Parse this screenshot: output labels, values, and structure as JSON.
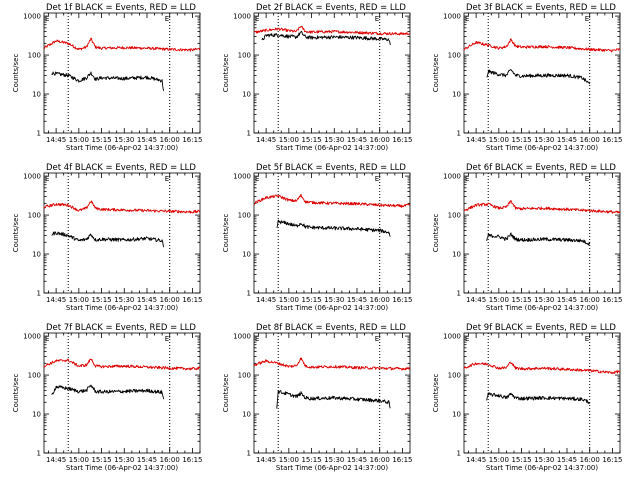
{
  "figure": {
    "layout": "3x3",
    "xlabel": "Start Time (06-Apr-02 14:37:00)",
    "ylabel": "Counts/sec",
    "x_tick_labels": [
      "14:45",
      "15:00",
      "15:15",
      "15:30",
      "15:45",
      "16:00",
      "16:15"
    ],
    "y_tick_labels": [
      "1",
      "10",
      "100",
      "1000"
    ],
    "marker_letter": "E",
    "colors": {
      "events": "#000000",
      "lld": "#dd0000"
    }
  },
  "chart_data": [
    {
      "type": "line",
      "title": "Det 1f BLACK = Events, RED = LLD",
      "xlim": [
        "14:37",
        "16:20"
      ],
      "ylim": [
        1,
        1200
      ],
      "yscale": "log",
      "vlines": [
        "14:53",
        "16:00"
      ],
      "marker_letter": "E",
      "series": [
        {
          "color": "#dd0000",
          "x": [
            "14:37",
            "14:45",
            "14:53",
            "15:00",
            "15:05",
            "15:08",
            "15:11",
            "15:15",
            "15:30",
            "15:45",
            "16:00",
            "16:15",
            "16:20"
          ],
          "values": [
            150,
            230,
            200,
            140,
            160,
            260,
            160,
            150,
            155,
            150,
            140,
            135,
            145
          ]
        },
        {
          "color": "#000000",
          "x": [
            "14:42",
            "14:45",
            "14:53",
            "15:00",
            "15:05",
            "15:08",
            "15:11",
            "15:15",
            "15:30",
            "15:45",
            "15:55",
            "15:56"
          ],
          "values": [
            35,
            33,
            30,
            22,
            26,
            35,
            24,
            26,
            25,
            27,
            22,
            12
          ]
        }
      ]
    },
    {
      "type": "line",
      "title": "Det 2f BLACK = Events, RED = LLD",
      "xlim": [
        "14:37",
        "16:20"
      ],
      "ylim": [
        1,
        1200
      ],
      "yscale": "log",
      "vlines": [
        "14:53",
        "16:00"
      ],
      "marker_letter": "E",
      "series": [
        {
          "color": "#dd0000",
          "x": [
            "14:37",
            "14:45",
            "14:53",
            "15:00",
            "15:05",
            "15:08",
            "15:11",
            "15:15",
            "15:30",
            "15:45",
            "16:00",
            "16:15",
            "16:20"
          ],
          "values": [
            380,
            430,
            470,
            420,
            400,
            550,
            400,
            390,
            400,
            380,
            360,
            350,
            360
          ]
        },
        {
          "color": "#000000",
          "x": [
            "14:42",
            "14:45",
            "14:53",
            "15:00",
            "15:05",
            "15:08",
            "15:11",
            "15:15",
            "15:30",
            "15:45",
            "16:00",
            "16:06",
            "16:07"
          ],
          "values": [
            230,
            320,
            330,
            300,
            290,
            380,
            290,
            280,
            290,
            280,
            260,
            250,
            180
          ]
        }
      ]
    },
    {
      "type": "line",
      "title": "Det 3f BLACK = Events, RED = LLD",
      "xlim": [
        "14:37",
        "16:20"
      ],
      "ylim": [
        1,
        1200
      ],
      "yscale": "log",
      "vlines": [
        "14:53",
        "16:00"
      ],
      "marker_letter": "E",
      "series": [
        {
          "color": "#dd0000",
          "x": [
            "14:37",
            "14:45",
            "14:53",
            "15:00",
            "15:05",
            "15:08",
            "15:11",
            "15:15",
            "15:30",
            "15:45",
            "16:00",
            "16:15",
            "16:20"
          ],
          "values": [
            140,
            210,
            180,
            150,
            165,
            250,
            170,
            160,
            165,
            155,
            140,
            130,
            140
          ]
        },
        {
          "color": "#000000",
          "x": [
            "14:52",
            "14:53",
            "15:00",
            "15:05",
            "15:08",
            "15:11",
            "15:15",
            "15:30",
            "15:45",
            "15:55",
            "16:00"
          ],
          "values": [
            25,
            38,
            32,
            30,
            42,
            30,
            29,
            30,
            30,
            26,
            18
          ]
        }
      ]
    },
    {
      "type": "line",
      "title": "Det 4f BLACK = Events, RED = LLD",
      "xlim": [
        "14:37",
        "16:20"
      ],
      "ylim": [
        1,
        1200
      ],
      "yscale": "log",
      "vlines": [
        "14:53",
        "16:00"
      ],
      "marker_letter": "E",
      "series": [
        {
          "color": "#dd0000",
          "x": [
            "14:37",
            "14:45",
            "14:53",
            "15:00",
            "15:05",
            "15:08",
            "15:11",
            "15:15",
            "15:30",
            "15:45",
            "16:00",
            "16:15",
            "16:20"
          ],
          "values": [
            160,
            190,
            180,
            130,
            150,
            230,
            150,
            140,
            135,
            130,
            125,
            120,
            125
          ]
        },
        {
          "color": "#000000",
          "x": [
            "14:42",
            "14:45",
            "14:53",
            "15:00",
            "15:05",
            "15:08",
            "15:11",
            "15:15",
            "15:30",
            "15:45",
            "15:55",
            "15:56"
          ],
          "values": [
            32,
            35,
            30,
            22,
            24,
            32,
            23,
            24,
            23,
            25,
            22,
            15
          ]
        }
      ]
    },
    {
      "type": "line",
      "title": "Det 5f BLACK = Events, RED = LLD",
      "xlim": [
        "14:37",
        "16:20"
      ],
      "ylim": [
        1,
        1200
      ],
      "yscale": "log",
      "vlines": [
        "14:53",
        "16:00"
      ],
      "marker_letter": "E",
      "series": [
        {
          "color": "#dd0000",
          "x": [
            "14:37",
            "14:45",
            "14:53",
            "15:00",
            "15:05",
            "15:08",
            "15:11",
            "15:15",
            "15:30",
            "15:45",
            "16:00",
            "16:15",
            "16:20"
          ],
          "values": [
            200,
            280,
            310,
            240,
            230,
            320,
            220,
            210,
            200,
            195,
            180,
            170,
            180
          ]
        },
        {
          "color": "#000000",
          "x": [
            "14:52",
            "14:53",
            "15:00",
            "15:05",
            "15:08",
            "15:11",
            "15:15",
            "15:30",
            "15:45",
            "16:00",
            "16:06",
            "16:07"
          ],
          "values": [
            45,
            68,
            60,
            52,
            62,
            50,
            48,
            46,
            44,
            40,
            36,
            28
          ]
        }
      ]
    },
    {
      "type": "line",
      "title": "Det 6f BLACK = Events, RED = LLD",
      "xlim": [
        "14:37",
        "16:20"
      ],
      "ylim": [
        1,
        1200
      ],
      "yscale": "log",
      "vlines": [
        "14:53",
        "16:00"
      ],
      "marker_letter": "E",
      "series": [
        {
          "color": "#dd0000",
          "x": [
            "14:37",
            "14:45",
            "14:53",
            "15:00",
            "15:05",
            "15:08",
            "15:11",
            "15:15",
            "15:30",
            "15:45",
            "16:00",
            "16:15",
            "16:20"
          ],
          "values": [
            130,
            180,
            190,
            150,
            160,
            230,
            150,
            145,
            150,
            140,
            130,
            120,
            115
          ]
        },
        {
          "color": "#000000",
          "x": [
            "14:52",
            "14:53",
            "15:00",
            "15:05",
            "15:08",
            "15:11",
            "15:15",
            "15:30",
            "15:45",
            "15:55",
            "16:00"
          ],
          "values": [
            22,
            30,
            28,
            24,
            32,
            24,
            23,
            24,
            23,
            22,
            18
          ]
        }
      ]
    },
    {
      "type": "line",
      "title": "Det 7f BLACK = Events, RED = LLD",
      "xlim": [
        "14:37",
        "16:20"
      ],
      "ylim": [
        1,
        1200
      ],
      "yscale": "log",
      "vlines": [
        "14:53",
        "16:00"
      ],
      "marker_letter": "E",
      "series": [
        {
          "color": "#dd0000",
          "x": [
            "14:37",
            "14:45",
            "14:53",
            "15:00",
            "15:05",
            "15:08",
            "15:11",
            "15:15",
            "15:30",
            "15:45",
            "16:00",
            "16:15",
            "16:20"
          ],
          "values": [
            170,
            230,
            240,
            170,
            180,
            260,
            170,
            165,
            170,
            160,
            150,
            145,
            150
          ]
        },
        {
          "color": "#000000",
          "x": [
            "14:42",
            "14:45",
            "14:53",
            "15:00",
            "15:05",
            "15:08",
            "15:11",
            "15:15",
            "15:30",
            "15:45",
            "15:55",
            "15:56"
          ],
          "values": [
            30,
            50,
            45,
            38,
            40,
            55,
            38,
            37,
            38,
            40,
            36,
            24
          ]
        }
      ]
    },
    {
      "type": "line",
      "title": "Det 8f BLACK = Events, RED = LLD",
      "xlim": [
        "14:37",
        "16:20"
      ],
      "ylim": [
        1,
        1200
      ],
      "yscale": "log",
      "vlines": [
        "14:53",
        "16:00"
      ],
      "marker_letter": "E",
      "series": [
        {
          "color": "#dd0000",
          "x": [
            "14:37",
            "14:45",
            "14:53",
            "15:00",
            "15:05",
            "15:08",
            "15:11",
            "15:15",
            "15:30",
            "15:45",
            "16:00",
            "16:15",
            "16:20"
          ],
          "values": [
            180,
            230,
            200,
            165,
            175,
            270,
            170,
            160,
            165,
            155,
            150,
            145,
            150
          ]
        },
        {
          "color": "#000000",
          "x": [
            "14:52",
            "14:53",
            "15:00",
            "15:05",
            "15:08",
            "15:11",
            "15:15",
            "15:30",
            "15:45",
            "16:00",
            "16:06",
            "16:07"
          ],
          "values": [
            15,
            38,
            32,
            28,
            34,
            26,
            25,
            26,
            24,
            22,
            20,
            14
          ]
        }
      ]
    },
    {
      "type": "line",
      "title": "Det 9f BLACK = Events, RED = LLD",
      "xlim": [
        "14:37",
        "16:20"
      ],
      "ylim": [
        1,
        1200
      ],
      "yscale": "log",
      "vlines": [
        "14:53",
        "16:00"
      ],
      "marker_letter": "E",
      "series": [
        {
          "color": "#dd0000",
          "x": [
            "14:37",
            "14:45",
            "14:53",
            "15:00",
            "15:05",
            "15:08",
            "15:11",
            "15:15",
            "15:30",
            "15:45",
            "16:00",
            "16:15",
            "16:20"
          ],
          "values": [
            150,
            200,
            190,
            150,
            155,
            220,
            150,
            145,
            150,
            140,
            130,
            115,
            125
          ]
        },
        {
          "color": "#000000",
          "x": [
            "14:52",
            "14:53",
            "15:00",
            "15:05",
            "15:08",
            "15:11",
            "15:15",
            "15:30",
            "15:45",
            "15:55",
            "16:00"
          ],
          "values": [
            22,
            32,
            30,
            26,
            33,
            26,
            25,
            26,
            25,
            24,
            20
          ]
        }
      ]
    }
  ]
}
